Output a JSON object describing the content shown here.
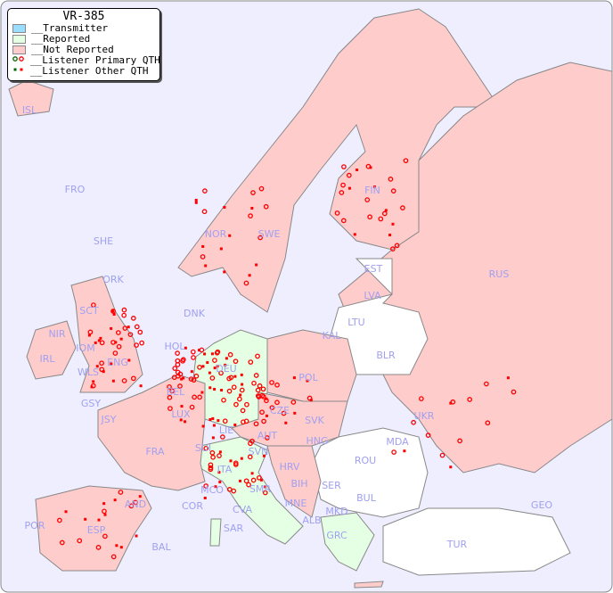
{
  "legend": {
    "title": "VR-385",
    "items": [
      {
        "label": "__Transmitter",
        "color": "#99ddff"
      },
      {
        "label": "__Reported",
        "color": "#e5ffe5"
      },
      {
        "label": "__Not Reported",
        "color": "#ffcccc"
      },
      {
        "label": "__Listener Primary QTH",
        "icon": "open-circle-marker"
      },
      {
        "label": "__Listener Other QTH",
        "icon": "square-marker"
      }
    ]
  },
  "colors": {
    "sea": "#eeeeff",
    "not_reported": "#ffcccc",
    "reported": "#e5ffe5",
    "no_data": "#ffffff",
    "marker": "#ff0000",
    "marker_alt": "#006600",
    "label": "#a0a0f0"
  },
  "countries": [
    "ISL",
    "FRO",
    "SHE",
    "ORK",
    "NOR",
    "SWE",
    "FIN",
    "EST",
    "LVA",
    "LTU",
    "KAL",
    "BLR",
    "RUS",
    "DNK",
    "HOL",
    "DEU",
    "POL",
    "UKR",
    "IRL",
    "NIR",
    "SCT",
    "IOM",
    "WLS",
    "ENG",
    "GSY",
    "JSY",
    "BEL",
    "LUX",
    "CZE",
    "SVK",
    "AUT",
    "HNG",
    "MDA",
    "ROU",
    "FRA",
    "SUI",
    "LIE",
    "ITA",
    "SVN",
    "HRV",
    "BIH",
    "SER",
    "MNE",
    "ALB",
    "MKD",
    "BUL",
    "GRC",
    "TUR",
    "GEO",
    "MCO",
    "COR",
    "SAR",
    "CVA",
    "SMR",
    "AND",
    "POR",
    "ESP",
    "BAL"
  ]
}
